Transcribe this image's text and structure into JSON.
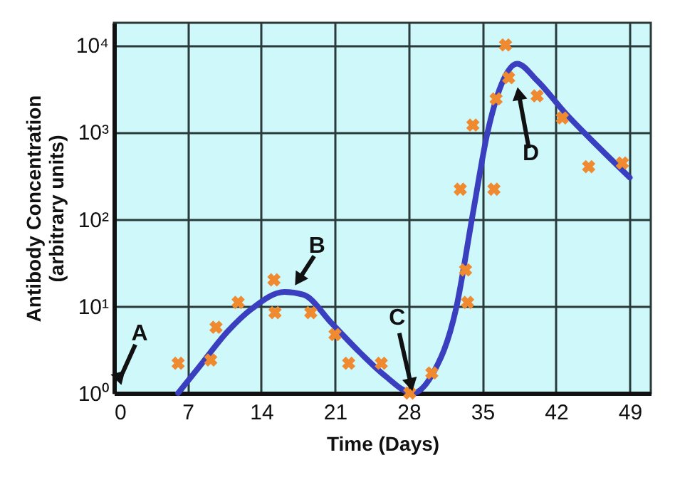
{
  "chart_data": {
    "type": "line",
    "xlabel": "Time (Days)",
    "ylabel": "Antibody Concentration (arbitrary units)",
    "log": "y",
    "grid": true,
    "xlim": [
      0,
      51
    ],
    "xticks": [
      0,
      7,
      14,
      21,
      28,
      35,
      42,
      49
    ],
    "ylim": [
      1,
      18000
    ],
    "yticks": [
      {
        "value": 1,
        "label": "10⁰"
      },
      {
        "value": 10,
        "label": "10¹"
      },
      {
        "value": 100,
        "label": "10²"
      },
      {
        "value": 1000,
        "label": "10³"
      },
      {
        "value": 10000,
        "label": "10⁴"
      }
    ],
    "series": [
      {
        "type": "scatter",
        "marker": "cross",
        "color": "#f08a30",
        "x": [
          6.1,
          9.2,
          9.7,
          11.8,
          15.2,
          15.3,
          18.7,
          21.0,
          22.3,
          25.4,
          28.1,
          30.2,
          33.4,
          33.6,
          32.9,
          36.1,
          34.1,
          36.3,
          37.2,
          37.5,
          40.2,
          42.6,
          45.1,
          48.3
        ],
        "values": [
          2.2,
          2.4,
          5.7,
          11,
          20,
          8.4,
          8.4,
          4.7,
          2.2,
          2.2,
          1,
          1.7,
          26,
          11,
          220,
          220,
          1200,
          2400,
          10000,
          4200,
          2600,
          1450,
          400,
          440
        ]
      },
      {
        "color": "#3a3fc0",
        "x": [
          6.1,
          8.1,
          10.8,
          13.1,
          16.2,
          18.0,
          20.7,
          23.4,
          25.7,
          28.4,
          30.2,
          32.5,
          34.1,
          35.5,
          36.8,
          38.3,
          40.2,
          42.9,
          46.0,
          49.0
        ],
        "values": [
          1,
          2,
          5.1,
          9.3,
          14.5,
          13.5,
          6.3,
          2.9,
          1.6,
          1,
          1.6,
          9.3,
          116,
          1000,
          3500,
          6100,
          3900,
          1640,
          680,
          300
        ]
      }
    ],
    "annotations": [
      "A",
      {
        "text": "B",
        "x": 17.3,
        "y": 18
      },
      {
        "text": "C",
        "x": 28.4,
        "y": 1
      },
      {
        "text": "D",
        "x": 38.3,
        "y": 3500
      }
    ]
  }
}
